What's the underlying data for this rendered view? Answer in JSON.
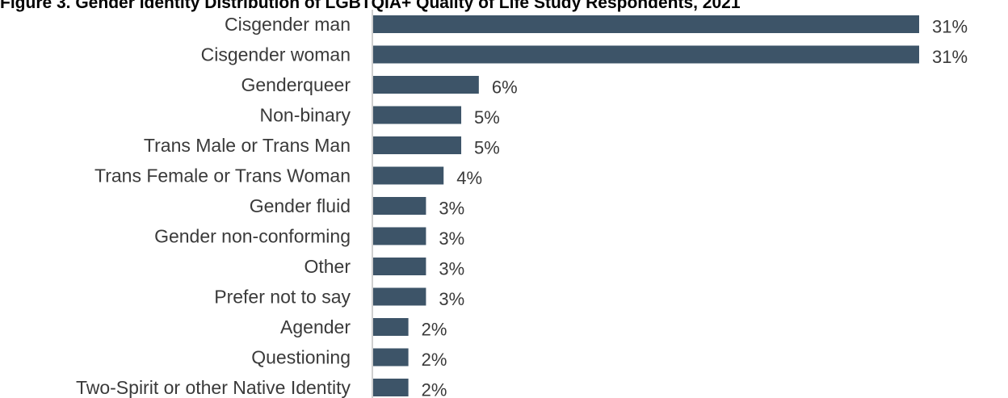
{
  "chart_data": {
    "type": "bar",
    "orientation": "horizontal",
    "title": "Figure 3. Gender Identity Distribution of LGBTQIA+ Quality of Life Study Respondents, 2021",
    "categories": [
      "Cisgender man",
      "Cisgender woman",
      "Genderqueer",
      "Non-binary",
      "Trans Male or Trans Man",
      "Trans Female or Trans Woman",
      "Gender fluid",
      "Gender non-conforming",
      "Other",
      "Prefer not to say",
      "Agender",
      "Questioning",
      "Two-Spirit or other Native Identity"
    ],
    "values": [
      31,
      31,
      6,
      5,
      5,
      4,
      3,
      3,
      3,
      3,
      2,
      2,
      2
    ],
    "value_labels": [
      "31%",
      "31%",
      "6%",
      "5%",
      "5%",
      "4%",
      "3%",
      "3%",
      "3%",
      "3%",
      "2%",
      "2%",
      "2%"
    ],
    "xlim": [
      0,
      31
    ],
    "bar_color": "#3d5468",
    "grid": false,
    "legend": "none"
  }
}
